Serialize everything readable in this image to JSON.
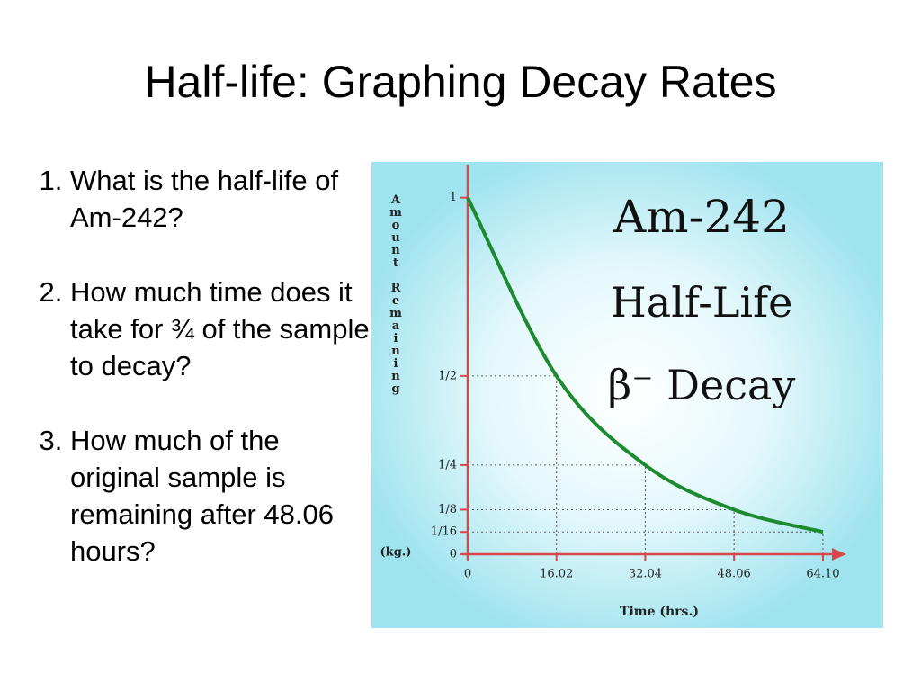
{
  "title": "Half-life: Graphing Decay Rates",
  "questions": [
    "What is the half-life of Am-242?",
    "How much time does it take for ¾ of the sample to decay?",
    "How much of the original sample is remaining after 48.06 hours?"
  ],
  "chart_data": {
    "type": "line",
    "title": [
      "Am-242",
      "Half-Life",
      "β⁻ Decay"
    ],
    "y_label": "Amount Remaining",
    "y_unit": "(kg.)",
    "x_label": "Time (hrs.)",
    "x": [
      0,
      16.02,
      32.04,
      48.06,
      64.1
    ],
    "x_labels": [
      "0",
      "16.02",
      "32.04",
      "48.06",
      "64.10"
    ],
    "values": [
      1,
      0.5,
      0.25,
      0.125,
      0.0625
    ],
    "color": "#1c8a2e",
    "xlim": [
      0,
      68
    ],
    "ylim": [
      0,
      1.08
    ],
    "xticks": [
      0,
      16.02,
      32.04,
      48.06,
      {
        "value": 64.1,
        "label": "64.10"
      }
    ],
    "yticks": [
      0,
      {
        "value": 0.0625,
        "label": "1/16"
      },
      {
        "value": 0.125,
        "label": "1/8"
      },
      {
        "value": 0.25,
        "label": "1/4"
      },
      {
        "value": 0.5,
        "label": "1/2"
      },
      1
    ]
  }
}
